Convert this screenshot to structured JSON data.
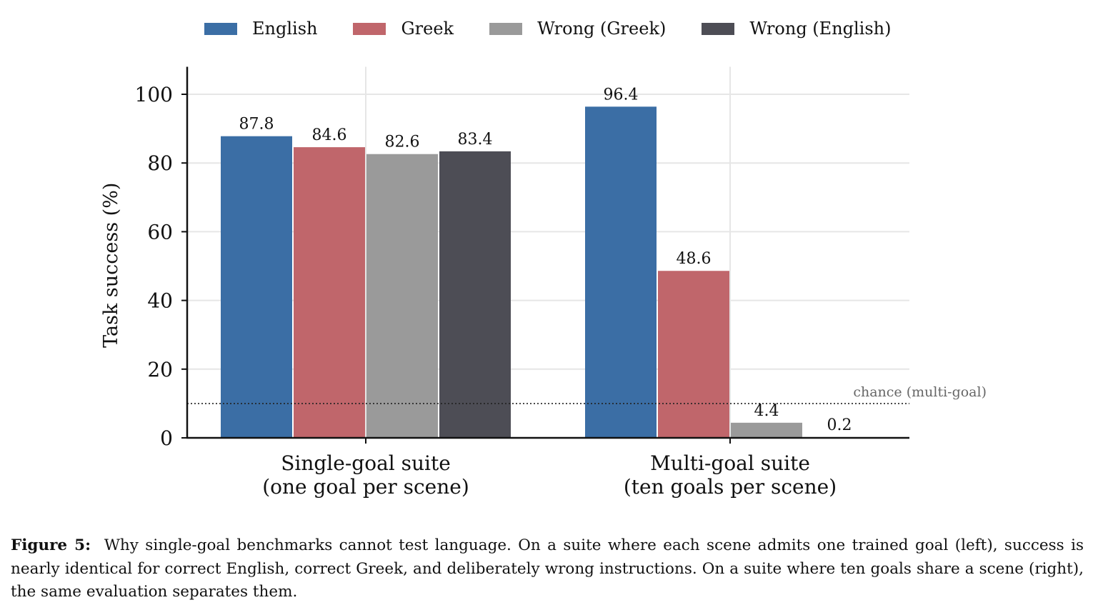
{
  "chart_data": {
    "type": "bar",
    "categories": [
      [
        "Single-goal suite",
        "(one goal per scene)"
      ],
      [
        "Multi-goal suite",
        "(ten goals per scene)"
      ]
    ],
    "series": [
      {
        "name": "English",
        "color": "#3b6ea5",
        "values": [
          87.8,
          96.4
        ],
        "labels": [
          "87.8",
          "96.4"
        ]
      },
      {
        "name": "Greek",
        "color": "#c0666b",
        "values": [
          84.6,
          48.6
        ],
        "labels": [
          "84.6",
          "48.6"
        ]
      },
      {
        "name": "Wrong (Greek)",
        "color": "#9a9a9a",
        "values": [
          82.6,
          4.4
        ],
        "labels": [
          "82.6",
          "4.4"
        ]
      },
      {
        "name": "Wrong (English)",
        "color": "#4d4d55",
        "values": [
          83.4,
          0.2
        ],
        "labels": [
          "83.4",
          "0.2"
        ]
      }
    ],
    "ylabel": "Task success (%)",
    "ylim": [
      0,
      108
    ],
    "yticks": [
      0,
      20,
      40,
      60,
      80,
      100
    ],
    "grid": true,
    "legend": "top",
    "reference_line": {
      "value": 10,
      "label": "chance (multi-goal)",
      "style": "dotted"
    }
  },
  "caption": {
    "label": "Figure 5:",
    "text": "Why single-goal benchmarks cannot test language. On a suite where each scene admits one trained goal (left), success is nearly identical for correct English, correct Greek, and deliberately wrong instructions. On a suite where ten goals share a scene (right), the same evaluation separates them."
  }
}
